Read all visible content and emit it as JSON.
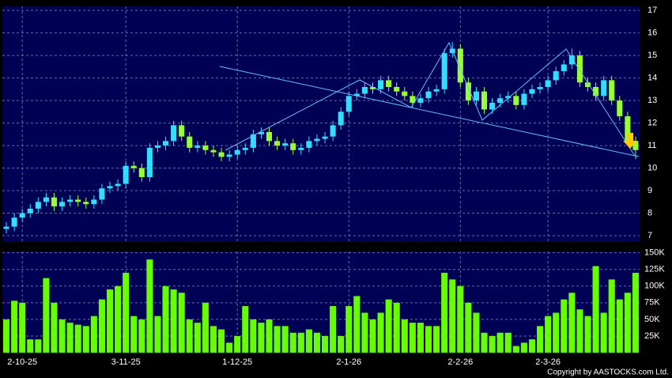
{
  "chart_data": [
    {
      "type": "candlestick",
      "categories": [
        null,
        null,
        "2-10-25",
        null,
        null,
        null,
        null,
        null,
        null,
        null,
        null,
        null,
        null,
        null,
        null,
        "3-11-25",
        null,
        null,
        null,
        null,
        null,
        null,
        null,
        null,
        null,
        null,
        null,
        null,
        null,
        "1-12-25",
        null,
        null,
        null,
        null,
        null,
        null,
        null,
        null,
        null,
        null,
        null,
        null,
        null,
        "2-1-26",
        null,
        null,
        null,
        null,
        null,
        null,
        null,
        null,
        null,
        null,
        null,
        null,
        null,
        "2-2-26",
        null,
        null,
        null,
        null,
        null,
        null,
        null,
        null,
        null,
        null,
        "2-3-26",
        null,
        null,
        null,
        null,
        null,
        null,
        null,
        null,
        null,
        null,
        null
      ],
      "open": [
        7.3,
        7.4,
        7.8,
        8.0,
        8.2,
        8.5,
        8.7,
        8.3,
        8.5,
        8.6,
        8.5,
        8.4,
        8.6,
        9.1,
        9.2,
        9.3,
        10.1,
        10.0,
        9.6,
        10.9,
        11.0,
        11.2,
        11.9,
        11.4,
        10.9,
        11.0,
        10.8,
        10.7,
        10.5,
        10.6,
        10.8,
        10.9,
        11.5,
        11.6,
        11.2,
        11.0,
        11.1,
        10.8,
        10.9,
        11.2,
        11.3,
        11.4,
        11.9,
        12.5,
        13.2,
        13.3,
        13.6,
        13.5,
        13.9,
        13.6,
        13.4,
        13.2,
        12.9,
        13.1,
        13.4,
        13.5,
        15.1,
        15.3,
        13.8,
        13.0,
        13.4,
        12.6,
        12.9,
        13.1,
        13.2,
        12.8,
        13.3,
        13.5,
        13.6,
        13.9,
        14.3,
        14.6,
        15.0,
        13.8,
        13.6,
        13.2,
        13.9,
        13.0,
        12.3,
        11.2
      ],
      "high": [
        7.6,
        8.0,
        8.2,
        8.4,
        8.7,
        8.9,
        8.9,
        8.7,
        8.8,
        8.8,
        8.7,
        8.8,
        9.3,
        9.4,
        9.5,
        10.3,
        10.3,
        10.2,
        11.1,
        11.2,
        11.4,
        12.1,
        12.1,
        11.6,
        11.2,
        11.2,
        11.0,
        10.9,
        10.8,
        11.0,
        11.1,
        11.7,
        11.8,
        11.8,
        11.4,
        11.3,
        11.3,
        11.1,
        11.4,
        11.5,
        11.6,
        12.1,
        12.7,
        13.4,
        13.5,
        13.8,
        13.8,
        14.1,
        14.1,
        13.8,
        13.6,
        13.4,
        13.3,
        13.6,
        13.7,
        15.3,
        15.6,
        15.5,
        14.0,
        13.6,
        13.6,
        13.1,
        13.3,
        13.4,
        13.4,
        13.5,
        13.7,
        13.8,
        14.1,
        14.5,
        14.8,
        15.3,
        15.2,
        14.0,
        13.8,
        14.1,
        14.1,
        13.2,
        12.5,
        11.4
      ],
      "low": [
        7.1,
        7.2,
        7.6,
        7.8,
        8.0,
        8.3,
        8.1,
        8.1,
        8.3,
        8.3,
        8.2,
        8.2,
        8.4,
        8.9,
        9.0,
        9.1,
        9.8,
        9.4,
        9.4,
        10.7,
        10.8,
        11.0,
        11.2,
        10.7,
        10.7,
        10.6,
        10.5,
        10.3,
        10.3,
        10.4,
        10.6,
        10.7,
        11.3,
        11.0,
        10.8,
        10.8,
        10.6,
        10.6,
        10.7,
        11.0,
        11.1,
        11.2,
        11.7,
        12.3,
        13.0,
        13.1,
        13.3,
        13.3,
        13.4,
        13.2,
        13.0,
        12.7,
        12.7,
        12.9,
        13.2,
        13.3,
        14.9,
        13.6,
        12.8,
        12.8,
        12.4,
        12.4,
        12.7,
        12.9,
        12.6,
        12.6,
        13.1,
        13.3,
        13.4,
        13.7,
        14.1,
        14.4,
        13.6,
        13.4,
        13.0,
        13.0,
        12.8,
        12.1,
        11.0,
        10.4
      ],
      "close": [
        7.4,
        7.8,
        8.0,
        8.2,
        8.5,
        8.7,
        8.3,
        8.5,
        8.6,
        8.5,
        8.4,
        8.6,
        9.1,
        9.2,
        9.3,
        10.1,
        10.0,
        9.6,
        10.9,
        11.0,
        11.2,
        11.9,
        11.4,
        10.9,
        11.0,
        10.8,
        10.7,
        10.5,
        10.6,
        10.8,
        10.9,
        11.5,
        11.6,
        11.2,
        11.0,
        11.1,
        10.8,
        10.9,
        11.2,
        11.3,
        11.4,
        11.9,
        12.5,
        13.2,
        13.3,
        13.6,
        13.5,
        13.9,
        13.6,
        13.4,
        13.2,
        12.9,
        13.1,
        13.4,
        13.5,
        15.1,
        15.3,
        13.8,
        13.0,
        13.4,
        12.6,
        12.9,
        13.1,
        13.2,
        12.8,
        13.3,
        13.5,
        13.6,
        13.9,
        14.3,
        14.6,
        15.0,
        13.8,
        13.6,
        13.2,
        13.9,
        13.0,
        12.3,
        11.2,
        10.8
      ],
      "up_color": "#33ddff",
      "down_color": "#99ff33",
      "ylim": [
        6.72,
        17.18
      ],
      "yticks": [
        7,
        8,
        9,
        10,
        11,
        12,
        13,
        14,
        15,
        16,
        17
      ],
      "grid": true
    },
    {
      "type": "bar",
      "values": [
        50000,
        78000,
        75000,
        20000,
        20000,
        112000,
        75000,
        50000,
        45000,
        42000,
        40000,
        55000,
        80000,
        95000,
        100000,
        120000,
        55000,
        50000,
        140000,
        55000,
        100000,
        95000,
        90000,
        50000,
        45000,
        75000,
        40000,
        35000,
        15000,
        25000,
        70000,
        50000,
        45000,
        50000,
        40000,
        40000,
        30000,
        30000,
        35000,
        30000,
        25000,
        70000,
        25000,
        70000,
        85000,
        60000,
        50000,
        60000,
        80000,
        75000,
        50000,
        45000,
        45000,
        40000,
        40000,
        120000,
        110000,
        100000,
        75000,
        60000,
        30000,
        25000,
        30000,
        30000,
        10000,
        15000,
        20000,
        40000,
        55000,
        60000,
        80000,
        90000,
        65000,
        55000,
        130000,
        60000,
        110000,
        80000,
        90000,
        120000
      ],
      "color": "#66ff00",
      "ylim": [
        0,
        152000
      ],
      "yticks": [
        {
          "value": 25000,
          "label": "25K"
        },
        {
          "value": 50000,
          "label": "50K"
        },
        {
          "value": 75000,
          "label": "75K"
        },
        {
          "value": 100000,
          "label": "100K"
        },
        {
          "value": 125000,
          "label": "125K"
        },
        {
          "value": 150000,
          "label": "150K"
        }
      ],
      "grid": true
    }
  ],
  "copyright": "Copyright by AASTOCKS.com Ltd."
}
